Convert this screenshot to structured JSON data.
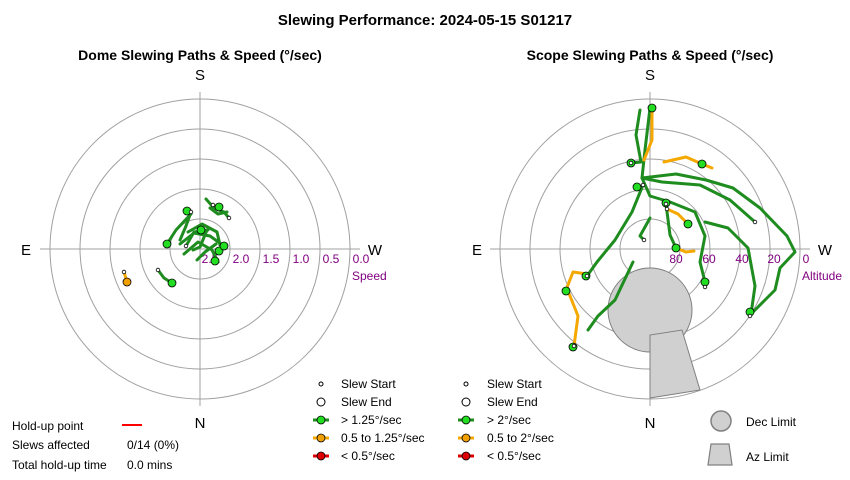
{
  "title": "Slewing Performance: 2024-05-15 S01217",
  "dome": {
    "subtitle": "Dome Slewing Paths & Speed (°/sec)",
    "compass": {
      "top": "S",
      "bottom": "N",
      "left": "E",
      "right": "W"
    },
    "axis_label": "Speed",
    "ticks": [
      "2.5",
      "2.0",
      "1.5",
      "1.0",
      "0.5",
      "0.0"
    ]
  },
  "scope": {
    "subtitle": "Scope Slewing Paths & Speed (°/sec)",
    "compass": {
      "top": "S",
      "bottom": "N",
      "left": "E",
      "right": "W"
    },
    "axis_label": "Altitude",
    "ticks": [
      "80",
      "60",
      "40",
      "20",
      "0"
    ]
  },
  "legend_dome": {
    "start": "Slew Start",
    "end": "Slew End",
    "fast": "> 1.25°/sec",
    "medium": "0.5 to 1.25°/sec",
    "slow": "< 0.5°/sec"
  },
  "legend_scope": {
    "start": "Slew Start",
    "end": "Slew End",
    "fast": "> 2°/sec",
    "medium": "0.5 to 2°/sec",
    "slow": "< 0.5°/sec"
  },
  "limits": {
    "dec": "Dec Limit",
    "az": "Az Limit"
  },
  "stats": {
    "holdup_label": "Hold-up point",
    "slews_label": "Slews affected",
    "slews_value": "0/14 (0%)",
    "total_label": "Total hold-up time",
    "total_value": "0.0 mins"
  },
  "colors": {
    "fast": "#1e8c1e",
    "fast_marker": "#22dd22",
    "medium": "#f5a800",
    "medium_marker": "#f0a000",
    "slow": "#dd0000",
    "holdup": "#ff0000",
    "grid": "#a0a0a0",
    "limit_fill": "#d0d0d0",
    "limit_stroke": "#808080"
  },
  "chart_data": [
    {
      "type": "polar-path",
      "title": "Dome Slewing Paths & Speed (°/sec)",
      "radial_axis": "Speed (°/sec)",
      "radial_range": [
        2.5,
        0.0
      ],
      "series": [
        {
          "name": "> 1.25°/sec",
          "paths": [
            [
              [
                191,
                212
              ],
              [
                186,
                226
              ],
              [
                180,
                240
              ]
            ],
            [
              [
                167,
                244
              ],
              [
                176,
                230
              ],
              [
                191,
                214
              ]
            ],
            [
              [
                180,
                244
              ],
              [
                194,
                233
              ],
              [
                210,
                236
              ],
              [
                224,
                246
              ]
            ],
            [
              [
                218,
                262
              ],
              [
                212,
                250
              ],
              [
                198,
                242
              ],
              [
                184,
                254
              ]
            ],
            [
              [
                188,
                232
              ],
              [
                202,
                224
              ],
              [
                217,
                232
              ],
              [
                220,
                245
              ]
            ],
            [
              [
                207,
                230
              ],
              [
                200,
                247
              ],
              [
                193,
                250
              ]
            ],
            [
              [
                158,
                270
              ],
              [
                164,
                278
              ],
              [
                172,
                283
              ]
            ],
            [
              [
                206,
                199
              ],
              [
                214,
                208
              ],
              [
                224,
                212
              ],
              [
                229,
                218
              ]
            ],
            [
              [
                210,
                208
              ],
              [
                218,
                214
              ],
              [
                227,
                212
              ]
            ],
            [
              [
                197,
                260
              ],
              [
                205,
                252
              ],
              [
                216,
                244
              ]
            ],
            [
              [
                186,
                246
              ],
              [
                194,
                232
              ],
              [
                208,
                230
              ]
            ]
          ]
        },
        {
          "name": "0.5 to 1.25°/sec",
          "paths": [
            [
              [
                124,
                272
              ],
              [
                127,
                282
              ]
            ]
          ]
        }
      ],
      "start_points": [
        [
          191,
          212
        ],
        [
          229,
          218
        ],
        [
          213,
          205
        ],
        [
          158,
          270
        ],
        [
          124,
          272
        ],
        [
          186,
          246
        ]
      ],
      "end_points": [
        [
          187,
          211
        ],
        [
          219,
          207
        ],
        [
          215,
          261
        ],
        [
          172,
          283
        ],
        [
          167,
          244
        ],
        [
          219,
          251
        ],
        [
          201,
          230
        ],
        [
          224,
          246
        ]
      ],
      "medium_end_points": [
        [
          127,
          282
        ]
      ]
    },
    {
      "type": "polar-path",
      "title": "Scope Slewing Paths & Speed (°/sec)",
      "radial_axis": "Altitude",
      "radial_range": [
        90,
        0
      ],
      "series": [
        {
          "name": "> 2°/sec",
          "paths": [
            [
              [
                640,
                110
              ],
              [
                636,
                135
              ],
              [
                641,
                162
              ],
              [
                631,
                163
              ]
            ],
            [
              [
                650,
                108
              ],
              [
                645,
                150
              ],
              [
                642,
                178
              ],
              [
                662,
                182
              ],
              [
                700,
                185
              ],
              [
                730,
                200
              ],
              [
                755,
                222
              ]
            ],
            [
              [
                642,
                178
              ],
              [
                676,
                174
              ],
              [
                706,
                180
              ],
              [
                733,
                188
              ],
              [
                760,
                208
              ],
              [
                787,
                236
              ],
              [
                795,
                252
              ],
              [
                780,
                268
              ],
              [
                775,
                290
              ],
              [
                765,
                300
              ],
              [
                753,
                312
              ]
            ],
            [
              [
                642,
                178
              ],
              [
                650,
                196
              ],
              [
                670,
                202
              ],
              [
                695,
                212
              ],
              [
                705,
                236
              ],
              [
                700,
                262
              ],
              [
                705,
                282
              ]
            ],
            [
              [
                643,
                185
              ],
              [
                632,
                212
              ],
              [
                615,
                240
              ],
              [
                597,
                262
              ],
              [
                587,
                276
              ]
            ],
            [
              [
                650,
                218
              ],
              [
                640,
                236
              ],
              [
                644,
                240
              ]
            ],
            [
              [
                633,
                262
              ],
              [
                615,
                300
              ],
              [
                598,
                316
              ],
              [
                588,
                330
              ]
            ],
            [
              [
                705,
                222
              ],
              [
                728,
                228
              ],
              [
                748,
                248
              ],
              [
                755,
                286
              ],
              [
                751,
                314
              ]
            ],
            [
              [
                666,
                204
              ],
              [
                670,
                235
              ],
              [
                676,
                248
              ]
            ]
          ]
        },
        {
          "name": "0.5 to 2°/sec",
          "paths": [
            [
              [
                652,
                110
              ],
              [
                652,
                140
              ],
              [
                644,
                160
              ]
            ],
            [
              [
                664,
                162
              ],
              [
                686,
                157
              ],
              [
                702,
                164
              ],
              [
                712,
                168
              ]
            ],
            [
              [
                667,
                209
              ],
              [
                678,
                214
              ],
              [
                688,
                224
              ]
            ],
            [
              [
                566,
                290
              ],
              [
                573,
                272
              ],
              [
                587,
                274
              ]
            ],
            [
              [
                568,
                291
              ],
              [
                578,
                316
              ],
              [
                574,
                346
              ]
            ],
            [
              [
                694,
                251
              ],
              [
                686,
                252
              ],
              [
                676,
                248
              ]
            ]
          ]
        }
      ],
      "start_points": [
        [
          631,
          163
        ],
        [
          755,
          222
        ],
        [
          643,
          185
        ],
        [
          644,
          240
        ],
        [
          666,
          204
        ],
        [
          705,
          287
        ],
        [
          587,
          276
        ],
        [
          750,
          316
        ],
        [
          574,
          346
        ],
        [
          667,
          209
        ]
      ],
      "end_points": [
        [
          652,
          108
        ],
        [
          702,
          164
        ],
        [
          688,
          224
        ],
        [
          676,
          248
        ],
        [
          566,
          291
        ],
        [
          750,
          312
        ],
        [
          586,
          276
        ],
        [
          573,
          347
        ],
        [
          705,
          282
        ],
        [
          631,
          163
        ],
        [
          637,
          187
        ],
        [
          666,
          203
        ]
      ]
    }
  ]
}
